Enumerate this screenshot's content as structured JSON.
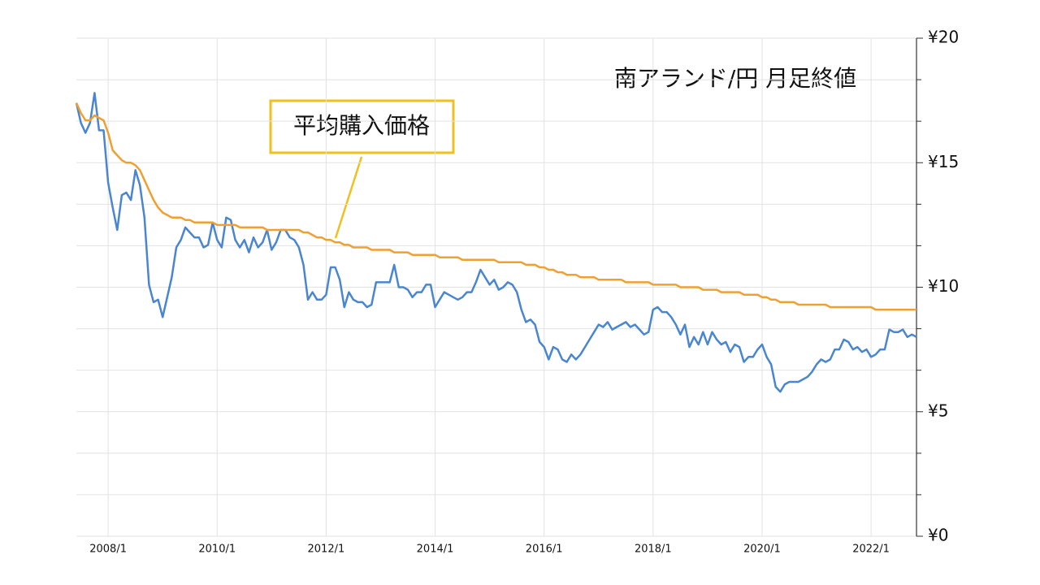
{
  "chart_data": {
    "type": "line",
    "title": "南アランド/円 月足終値",
    "x": [
      "2007/6",
      "2007/7",
      "2007/8",
      "2007/9",
      "2007/10",
      "2007/11",
      "2007/12",
      "2008/1",
      "2008/2",
      "2008/3",
      "2008/4",
      "2008/5",
      "2008/6",
      "2008/7",
      "2008/8",
      "2008/9",
      "2008/10",
      "2008/11",
      "2008/12",
      "2009/1",
      "2009/2",
      "2009/3",
      "2009/4",
      "2009/5",
      "2009/6",
      "2009/7",
      "2009/8",
      "2009/9",
      "2009/10",
      "2009/11",
      "2009/12",
      "2010/1",
      "2010/2",
      "2010/3",
      "2010/4",
      "2010/5",
      "2010/6",
      "2010/7",
      "2010/8",
      "2010/9",
      "2010/10",
      "2010/11",
      "2010/12",
      "2011/1",
      "2011/2",
      "2011/3",
      "2011/4",
      "2011/5",
      "2011/6",
      "2011/7",
      "2011/8",
      "2011/9",
      "2011/10",
      "2011/11",
      "2011/12",
      "2012/1",
      "2012/2",
      "2012/3",
      "2012/4",
      "2012/5",
      "2012/6",
      "2012/7",
      "2012/8",
      "2012/9",
      "2012/10",
      "2012/11",
      "2012/12",
      "2013/1",
      "2013/2",
      "2013/3",
      "2013/4",
      "2013/5",
      "2013/6",
      "2013/7",
      "2013/8",
      "2013/9",
      "2013/10",
      "2013/11",
      "2013/12",
      "2014/1",
      "2014/2",
      "2014/3",
      "2014/4",
      "2014/5",
      "2014/6",
      "2014/7",
      "2014/8",
      "2014/9",
      "2014/10",
      "2014/11",
      "2014/12",
      "2015/1",
      "2015/2",
      "2015/3",
      "2015/4",
      "2015/5",
      "2015/6",
      "2015/7",
      "2015/8",
      "2015/9",
      "2015/10",
      "2015/11",
      "2015/12",
      "2016/1",
      "2016/2",
      "2016/3",
      "2016/4",
      "2016/5",
      "2016/6",
      "2016/7",
      "2016/8",
      "2016/9",
      "2016/10",
      "2016/11",
      "2016/12",
      "2017/1",
      "2017/2",
      "2017/3",
      "2017/4",
      "2017/5",
      "2017/6",
      "2017/7",
      "2017/8",
      "2017/9",
      "2017/10",
      "2017/11",
      "2017/12",
      "2018/1",
      "2018/2",
      "2018/3",
      "2018/4",
      "2018/5",
      "2018/6",
      "2018/7",
      "2018/8",
      "2018/9",
      "2018/10",
      "2018/11",
      "2018/12",
      "2019/1",
      "2019/2",
      "2019/3",
      "2019/4",
      "2019/5",
      "2019/6",
      "2019/7",
      "2019/8",
      "2019/9",
      "2019/10",
      "2019/11",
      "2019/12",
      "2020/1",
      "2020/2",
      "2020/3",
      "2020/4",
      "2020/5",
      "2020/6",
      "2020/7",
      "2020/8",
      "2020/9",
      "2020/10",
      "2020/11",
      "2020/12",
      "2021/1",
      "2021/2",
      "2021/3",
      "2021/4",
      "2021/5",
      "2021/6",
      "2021/7",
      "2021/8",
      "2021/9",
      "2021/10",
      "2021/11",
      "2021/12",
      "2022/1",
      "2022/2",
      "2022/3",
      "2022/4",
      "2022/5",
      "2022/6",
      "2022/7",
      "2022/8",
      "2022/9",
      "2022/10",
      "2022/11"
    ],
    "series": [
      {
        "color": "#4a86d0",
        "values": [
          17.4,
          16.6,
          16.2,
          16.6,
          17.8,
          16.3,
          16.3,
          14.2,
          13.2,
          12.3,
          13.7,
          13.8,
          13.5,
          14.7,
          14.1,
          12.8,
          10.1,
          9.4,
          9.5,
          8.8,
          9.6,
          10.4,
          11.6,
          11.9,
          12.4,
          12.2,
          12.0,
          12.0,
          11.6,
          11.7,
          12.6,
          11.9,
          11.6,
          12.8,
          12.7,
          11.9,
          11.6,
          11.9,
          11.4,
          12.0,
          11.6,
          11.8,
          12.3,
          11.5,
          11.8,
          12.3,
          12.3,
          12.0,
          11.9,
          11.6,
          10.9,
          9.5,
          9.8,
          9.5,
          9.5,
          9.7,
          10.8,
          10.8,
          10.3,
          9.2,
          9.8,
          9.5,
          9.4,
          9.4,
          9.2,
          9.3,
          10.2,
          10.2,
          10.2,
          10.2,
          10.9,
          10.0,
          10.0,
          9.9,
          9.6,
          9.8,
          9.8,
          10.1,
          10.1,
          9.2,
          9.5,
          9.8,
          9.7,
          9.6,
          9.5,
          9.6,
          9.8,
          9.8,
          10.2,
          10.7,
          10.4,
          10.1,
          10.3,
          9.9,
          10.0,
          10.2,
          10.1,
          9.8,
          9.1,
          8.6,
          8.7,
          8.5,
          7.8,
          7.6,
          7.1,
          7.6,
          7.5,
          7.1,
          7.0,
          7.3,
          7.1,
          7.3,
          7.6,
          7.9,
          8.2,
          8.5,
          8.4,
          8.6,
          8.3,
          8.4,
          8.5,
          8.6,
          8.4,
          8.5,
          8.3,
          8.1,
          8.2,
          9.1,
          9.2,
          9.0,
          9.0,
          8.8,
          8.5,
          8.1,
          8.5,
          7.6,
          8.0,
          7.7,
          8.2,
          7.7,
          8.2,
          7.9,
          7.7,
          7.8,
          7.4,
          7.7,
          7.6,
          7.0,
          7.2,
          7.2,
          7.5,
          7.7,
          7.2,
          6.9,
          6.0,
          5.8,
          6.1,
          6.2,
          6.2,
          6.2,
          6.3,
          6.4,
          6.6,
          6.9,
          7.1,
          7.0,
          7.1,
          7.5,
          7.5,
          7.9,
          7.8,
          7.5,
          7.6,
          7.4,
          7.5,
          7.2,
          7.3,
          7.5,
          7.5,
          8.3,
          8.2,
          8.2,
          8.3,
          8.0,
          8.1,
          8.0
        ]
      },
      {
        "name": "平均購入価格",
        "color": "#f0a030",
        "values": [
          17.4,
          17.0,
          16.7,
          16.7,
          16.9,
          16.8,
          16.7,
          16.2,
          15.5,
          15.3,
          15.1,
          15.0,
          15.0,
          14.9,
          14.7,
          14.3,
          13.9,
          13.5,
          13.2,
          13.0,
          12.9,
          12.8,
          12.8,
          12.8,
          12.7,
          12.7,
          12.6,
          12.6,
          12.6,
          12.6,
          12.6,
          12.5,
          12.5,
          12.5,
          12.5,
          12.5,
          12.4,
          12.4,
          12.4,
          12.4,
          12.4,
          12.4,
          12.3,
          12.3,
          12.3,
          12.3,
          12.3,
          12.3,
          12.3,
          12.3,
          12.2,
          12.2,
          12.1,
          12.0,
          12.0,
          11.9,
          11.9,
          11.8,
          11.8,
          11.7,
          11.7,
          11.6,
          11.6,
          11.6,
          11.6,
          11.5,
          11.5,
          11.5,
          11.5,
          11.5,
          11.4,
          11.4,
          11.4,
          11.4,
          11.3,
          11.3,
          11.3,
          11.3,
          11.3,
          11.3,
          11.2,
          11.2,
          11.2,
          11.2,
          11.2,
          11.1,
          11.1,
          11.1,
          11.1,
          11.1,
          11.1,
          11.1,
          11.1,
          11.0,
          11.0,
          11.0,
          11.0,
          11.0,
          11.0,
          10.9,
          10.9,
          10.9,
          10.8,
          10.8,
          10.7,
          10.7,
          10.6,
          10.6,
          10.5,
          10.5,
          10.5,
          10.4,
          10.4,
          10.4,
          10.4,
          10.3,
          10.3,
          10.3,
          10.3,
          10.3,
          10.3,
          10.2,
          10.2,
          10.2,
          10.2,
          10.2,
          10.2,
          10.1,
          10.1,
          10.1,
          10.1,
          10.1,
          10.1,
          10.0,
          10.0,
          10.0,
          10.0,
          10.0,
          9.9,
          9.9,
          9.9,
          9.9,
          9.8,
          9.8,
          9.8,
          9.8,
          9.8,
          9.7,
          9.7,
          9.7,
          9.7,
          9.6,
          9.6,
          9.5,
          9.5,
          9.4,
          9.4,
          9.4,
          9.4,
          9.3,
          9.3,
          9.3,
          9.3,
          9.3,
          9.3,
          9.3,
          9.2,
          9.2,
          9.2,
          9.2,
          9.2,
          9.2,
          9.2,
          9.2,
          9.2,
          9.2,
          9.1,
          9.1,
          9.1,
          9.1,
          9.1,
          9.1,
          9.1,
          9.1,
          9.1,
          9.1
        ]
      }
    ],
    "xticks": [
      "2008/1",
      "2010/1",
      "2012/1",
      "2014/1",
      "2016/1",
      "2018/1",
      "2020/1",
      "2022/1"
    ],
    "ylim": [
      0,
      20
    ],
    "yticks": [
      {
        "value": 0,
        "label": "¥0"
      },
      {
        "value": 5,
        "label": "¥5"
      },
      {
        "value": 10,
        "label": "¥10"
      },
      {
        "value": 15,
        "label": "¥15"
      },
      {
        "value": 20,
        "label": "¥20"
      }
    ],
    "minor_grid_divisions": 3,
    "grid": true
  }
}
